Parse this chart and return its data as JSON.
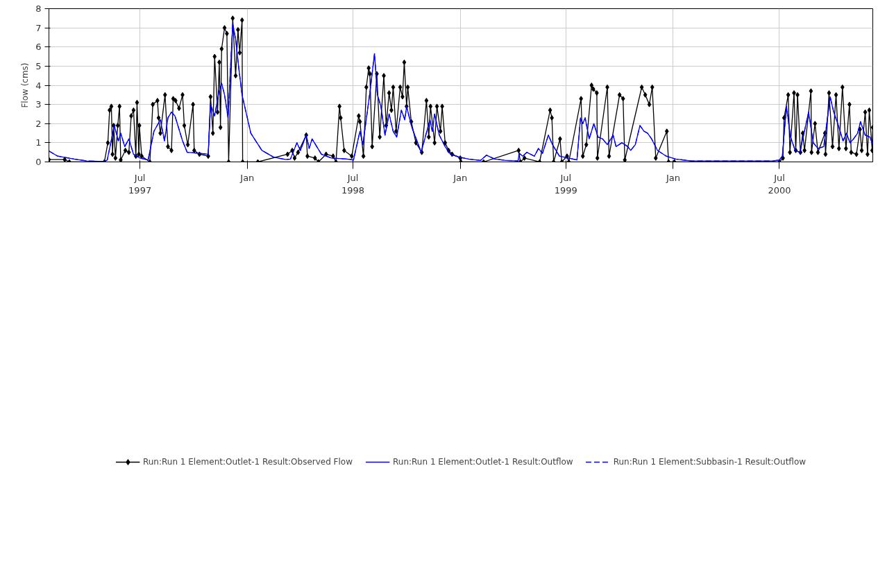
{
  "chart_data": {
    "type": "line",
    "ylabel": "Flow (cms)",
    "xlim": [
      "1997-01-26",
      "2000-12-08"
    ],
    "xticks": [
      {
        "value": "1997-07-01",
        "label": "Jul\n1997"
      },
      {
        "value": "1998-01-01",
        "label": "Jan"
      },
      {
        "value": "1998-07-01",
        "label": "Jul\n1998"
      },
      {
        "value": "1999-01-01",
        "label": "Jan"
      },
      {
        "value": "1999-07-01",
        "label": "Jul\n1999"
      },
      {
        "value": "2000-01-01",
        "label": "Jan"
      },
      {
        "value": "2000-07-01",
        "label": "Jul\n2000"
      }
    ],
    "ylim": [
      0,
      8
    ],
    "yticks": [
      0,
      1,
      2,
      3,
      4,
      5,
      6,
      7,
      8
    ],
    "grid": true,
    "legend": "bottom",
    "series": [
      {
        "name": "Run:Run 1 Element:Outlet-1 Result:Observed Flow",
        "color": "#000000",
        "marker": "diamond",
        "line_style": "solid",
        "x": [
          "1997-01-26",
          "1997-02-22",
          "1997-03-02",
          "1997-05-01",
          "1997-05-07",
          "1997-05-10",
          "1997-05-13",
          "1997-05-15",
          "1997-05-17",
          "1997-05-20",
          "1997-05-24",
          "1997-05-27",
          "1997-05-29",
          "1997-06-06",
          "1997-06-12",
          "1997-06-16",
          "1997-06-20",
          "1997-06-24",
          "1997-06-26",
          "1997-06-29",
          "1997-06-30",
          "1997-07-04",
          "1997-07-18",
          "1997-07-23",
          "1997-07-31",
          "1997-08-02",
          "1997-08-05",
          "1997-08-13",
          "1997-08-18",
          "1997-08-24",
          "1997-08-27",
          "1997-08-31",
          "1997-09-06",
          "1997-09-12",
          "1997-09-15",
          "1997-09-21",
          "1997-09-30",
          "1997-10-02",
          "1997-10-11",
          "1997-10-26",
          "1997-10-30",
          "1997-11-03",
          "1997-11-06",
          "1997-11-11",
          "1997-11-14",
          "1997-11-16",
          "1997-11-18",
          "1997-11-23",
          "1997-11-27",
          "1997-11-30",
          "1997-12-07",
          "1997-12-12",
          "1997-12-16",
          "1997-12-19",
          "1997-12-23",
          "1997-12-24",
          "1998-01-19",
          "1998-03-11",
          "1998-03-19",
          "1998-03-23",
          "1998-03-29",
          "1998-04-12",
          "1998-04-14",
          "1998-04-27",
          "1998-05-03",
          "1998-05-16",
          "1998-05-28",
          "1998-06-02",
          "1998-06-08",
          "1998-06-10",
          "1998-06-16",
          "1998-06-29",
          "1998-07-11",
          "1998-07-13",
          "1998-07-19",
          "1998-07-24",
          "1998-07-28",
          "1998-07-30",
          "1998-08-03",
          "1998-08-11",
          "1998-08-16",
          "1998-08-23",
          "1998-08-27",
          "1998-09-01",
          "1998-09-05",
          "1998-09-08",
          "1998-09-13",
          "1998-09-20",
          "1998-09-24",
          "1998-09-27",
          "1998-10-01",
          "1998-10-03",
          "1998-10-09",
          "1998-10-17",
          "1998-10-27",
          "1998-11-04",
          "1998-11-08",
          "1998-11-11",
          "1998-11-18",
          "1998-11-22",
          "1998-11-28",
          "1998-12-01",
          "1998-12-06",
          "1998-12-12",
          "1998-12-18",
          "1999-01-01",
          "1999-01-02",
          "1999-02-10",
          "1999-04-11",
          "1999-04-14",
          "1999-04-21",
          "1999-05-17",
          "1999-06-04",
          "1999-06-07",
          "1999-06-10",
          "1999-06-21",
          "1999-06-24",
          "1999-07-03",
          "1999-07-06",
          "1999-07-27",
          "1999-07-30",
          "1999-08-05",
          "1999-08-14",
          "1999-08-17",
          "1999-08-23",
          "1999-08-24",
          "1999-09-10",
          "1999-09-13",
          "1999-10-01",
          "1999-10-07",
          "1999-10-10",
          "1999-11-08",
          "1999-11-14",
          "1999-11-21",
          "1999-11-26",
          "1999-12-02",
          "1999-12-21",
          "1999-12-24",
          "2000-01-03",
          "2000-07-01",
          "2000-07-07",
          "2000-07-09",
          "2000-07-16",
          "2000-07-19",
          "2000-07-26",
          "2000-07-29",
          "2000-08-01",
          "2000-08-06",
          "2000-08-10",
          "2000-08-13",
          "2000-08-24",
          "2000-08-25",
          "2000-08-31",
          "2000-09-05",
          "2000-09-17",
          "2000-09-18",
          "2000-09-24",
          "2000-09-30",
          "2000-10-06",
          "2000-10-11",
          "2000-10-17",
          "2000-10-23",
          "2000-10-29",
          "2000-11-01",
          "2000-11-10",
          "2000-11-16",
          "2000-11-19",
          "2000-11-25",
          "2000-11-29",
          "2000-12-02",
          "2000-12-07",
          "2000-12-08"
        ],
        "values": [
          0.12,
          0.12,
          0,
          0,
          1.0,
          2.7,
          2.9,
          0.4,
          1.9,
          0.2,
          1.9,
          2.9,
          0.1,
          0.6,
          0.5,
          2.4,
          2.7,
          0.3,
          3.1,
          0.4,
          1.9,
          0.3,
          0,
          3.0,
          3.2,
          2.3,
          1.5,
          3.5,
          0.8,
          0.6,
          3.3,
          3.2,
          2.8,
          3.5,
          1.9,
          0.9,
          3.0,
          0.6,
          0.4,
          0.3,
          3.4,
          1.5,
          5.5,
          2.6,
          5.2,
          1.8,
          5.9,
          7.0,
          6.7,
          0,
          7.5,
          4.5,
          6.9,
          5.7,
          7.4,
          0,
          0,
          0.4,
          0.6,
          0.2,
          0.5,
          1.4,
          0.3,
          0.2,
          0,
          0.4,
          0.3,
          0,
          2.9,
          2.3,
          0.6,
          0.3,
          2.4,
          2.1,
          0.3,
          3.9,
          4.9,
          4.6,
          0.8,
          4.6,
          1.3,
          4.5,
          1.9,
          3.6,
          2.7,
          3.9,
          1.6,
          3.9,
          3.4,
          5.2,
          2.9,
          3.9,
          2.1,
          1.0,
          0.5,
          3.2,
          1.3,
          2.9,
          1.0,
          2.9,
          1.6,
          2.9,
          1.0,
          0.6,
          0.4,
          0.2,
          0,
          0,
          0.6,
          0,
          0.2,
          0,
          2.7,
          2.3,
          0,
          1.2,
          0,
          0.3,
          0,
          3.3,
          0.3,
          0.9,
          4.0,
          3.8,
          3.6,
          0.2,
          3.9,
          0.3,
          3.5,
          3.3,
          0.1,
          3.9,
          3.5,
          3.0,
          3.9,
          0.2,
          1.6,
          0,
          0,
          0,
          0.2,
          2.3,
          3.5,
          0.5,
          3.6,
          0.6,
          3.5,
          0.5,
          1.5,
          0.6,
          3.7,
          0.5,
          2.0,
          0.5,
          1.5,
          0.4,
          3.6,
          0.8,
          3.5,
          0.7,
          3.9,
          0.7,
          3.0,
          0.5,
          0.4,
          1.7,
          0.6,
          2.6,
          0.4,
          2.7,
          0.6,
          1.8
        ]
      },
      {
        "name": "Run:Run 1 Element:Outlet-1 Result:Outflow",
        "color": "#0000ff",
        "marker": "none",
        "line_style": "solid",
        "x": [
          "1997-01-26",
          "1997-02-10",
          "1997-03-10",
          "1997-04-01",
          "1997-05-01",
          "1997-05-06",
          "1997-05-18",
          "1997-05-25",
          "1997-05-29",
          "1997-06-05",
          "1997-06-12",
          "1997-06-20",
          "1997-07-01",
          "1997-07-15",
          "1997-07-25",
          "1997-08-05",
          "1997-08-12",
          "1997-08-18",
          "1997-08-24",
          "1997-08-30",
          "1997-09-05",
          "1997-09-12",
          "1997-09-20",
          "1997-10-10",
          "1997-10-26",
          "1997-10-30",
          "1997-11-06",
          "1997-11-13",
          "1997-11-18",
          "1997-11-23",
          "1997-11-29",
          "1997-12-07",
          "1997-12-12",
          "1997-12-17",
          "1997-12-23",
          "1998-01-07",
          "1998-01-26",
          "1998-02-15",
          "1998-03-08",
          "1998-03-16",
          "1998-03-27",
          "1998-04-02",
          "1998-04-12",
          "1998-04-17",
          "1998-04-22",
          "1998-05-08",
          "1998-05-25",
          "1998-06-20",
          "1998-07-02",
          "1998-07-13",
          "1998-07-18",
          "1998-07-30",
          "1998-08-07",
          "1998-08-12",
          "1998-08-18",
          "1998-08-25",
          "1998-09-01",
          "1998-09-08",
          "1998-09-14",
          "1998-09-22",
          "1998-09-28",
          "1998-10-01",
          "1998-10-10",
          "1998-10-20",
          "1998-10-26",
          "1998-11-02",
          "1998-11-10",
          "1998-11-14",
          "1998-11-18",
          "1998-11-26",
          "1998-12-06",
          "1998-12-15",
          "1998-12-31",
          "1999-01-15",
          "1999-02-05",
          "1999-02-15",
          "1999-03-01",
          "1999-03-20",
          "1999-04-10",
          "1999-04-12",
          "1999-04-18",
          "1999-04-25",
          "1999-05-08",
          "1999-05-15",
          "1999-05-22",
          "1999-06-01",
          "1999-06-08",
          "1999-06-20",
          "1999-07-05",
          "1999-07-20",
          "1999-07-26",
          "1999-07-30",
          "1999-08-03",
          "1999-08-10",
          "1999-08-18",
          "1999-08-25",
          "1999-09-02",
          "1999-09-10",
          "1999-09-20",
          "1999-09-25",
          "1999-10-05",
          "1999-10-15",
          "1999-10-20",
          "1999-10-28",
          "1999-11-05",
          "1999-11-12",
          "1999-11-18",
          "1999-11-25",
          "1999-12-05",
          "1999-12-20",
          "2000-01-05",
          "2000-02-01",
          "2000-06-20",
          "2000-07-01",
          "2000-07-06",
          "2000-07-13",
          "2000-07-20",
          "2000-07-28",
          "2000-08-05",
          "2000-08-20",
          "2000-08-28",
          "2000-09-05",
          "2000-09-15",
          "2000-09-26",
          "2000-10-02",
          "2000-10-10",
          "2000-10-18",
          "2000-10-24",
          "2000-10-30",
          "2000-11-05",
          "2000-11-12",
          "2000-11-17",
          "2000-11-25",
          "2000-12-03",
          "2000-12-08"
        ],
        "values": [
          0.57,
          0.3,
          0.15,
          0.05,
          0.02,
          0.1,
          1.9,
          1.1,
          1.5,
          0.8,
          1.2,
          0.4,
          0.2,
          0.1,
          1.6,
          2.2,
          1.1,
          2.3,
          2.6,
          2.4,
          1.8,
          1.1,
          0.5,
          0.45,
          0.4,
          3.0,
          2.4,
          3.6,
          4.1,
          3.5,
          2.3,
          7.2,
          6.4,
          5.0,
          3.5,
          1.5,
          0.6,
          0.25,
          0.12,
          0.15,
          1.0,
          0.6,
          1.4,
          0.7,
          1.2,
          0.4,
          0.2,
          0.15,
          0.1,
          1.6,
          0.9,
          3.6,
          5.65,
          3.5,
          2.9,
          1.4,
          2.5,
          1.6,
          1.3,
          2.7,
          2.2,
          2.9,
          1.8,
          1.0,
          0.5,
          1.3,
          2.2,
          1.6,
          2.5,
          1.4,
          0.8,
          0.4,
          0.25,
          0.15,
          0.08,
          0.35,
          0.15,
          0.08,
          0.05,
          0.45,
          0.3,
          0.5,
          0.3,
          0.7,
          0.45,
          1.4,
          0.9,
          0.3,
          0.2,
          0.1,
          2.3,
          2.0,
          2.3,
          1.2,
          2.0,
          1.3,
          1.2,
          0.9,
          1.4,
          0.8,
          1.0,
          0.8,
          0.6,
          0.9,
          1.9,
          1.6,
          1.5,
          1.2,
          0.6,
          0.3,
          0.15,
          0.05,
          0.05,
          0.1,
          0.3,
          2.9,
          1.3,
          0.6,
          0.5,
          2.6,
          1.0,
          0.7,
          0.8,
          3.4,
          2.6,
          1.9,
          1.1,
          1.5,
          1.0,
          1.2,
          1.5,
          2.1,
          1.4,
          1.3,
          0.9
        ]
      },
      {
        "name": "Run:Run 1 Element:Subbasin-1 Result:Outflow",
        "color": "#0000ff",
        "marker": "none",
        "line_style": "dashed",
        "x": [
          "1997-01-26",
          "1997-02-10",
          "1997-03-10",
          "1997-04-01",
          "1997-05-01",
          "1997-05-06",
          "1997-05-18",
          "1997-05-25",
          "1997-05-29",
          "1997-06-05",
          "1997-06-12",
          "1997-06-20",
          "1997-07-01",
          "1997-07-15",
          "1997-07-25",
          "1997-08-05",
          "1997-08-12",
          "1997-08-18",
          "1997-08-24",
          "1997-08-30",
          "1997-09-05",
          "1997-09-12",
          "1997-09-20",
          "1997-10-10",
          "1997-10-26",
          "1997-10-30",
          "1997-11-06",
          "1997-11-13",
          "1997-11-18",
          "1997-11-23",
          "1997-11-29",
          "1997-12-07",
          "1997-12-12",
          "1997-12-17",
          "1997-12-23",
          "1998-01-07",
          "1998-01-26",
          "1998-02-15",
          "1998-03-08",
          "1998-03-16",
          "1998-03-27",
          "1998-04-02",
          "1998-04-12",
          "1998-04-17",
          "1998-04-22",
          "1998-05-08",
          "1998-05-25",
          "1998-06-20",
          "1998-07-02",
          "1998-07-13",
          "1998-07-18",
          "1998-07-30",
          "1998-08-07",
          "1998-08-12",
          "1998-08-18",
          "1998-08-25",
          "1998-09-01",
          "1998-09-08",
          "1998-09-14",
          "1998-09-22",
          "1998-09-28",
          "1998-10-01",
          "1998-10-10",
          "1998-10-20",
          "1998-10-26",
          "1998-11-02",
          "1998-11-10",
          "1998-11-14",
          "1998-11-18",
          "1998-11-26",
          "1998-12-06",
          "1998-12-15",
          "1998-12-31",
          "1999-01-15",
          "1999-02-05",
          "1999-02-15",
          "1999-03-01",
          "1999-03-20",
          "1999-04-10",
          "1999-04-12",
          "1999-04-18",
          "1999-04-25",
          "1999-05-08",
          "1999-05-15",
          "1999-05-22",
          "1999-06-01",
          "1999-06-08",
          "1999-06-20",
          "1999-07-05",
          "1999-07-20",
          "1999-07-26",
          "1999-07-30",
          "1999-08-03",
          "1999-08-10",
          "1999-08-18",
          "1999-08-25",
          "1999-09-02",
          "1999-09-10",
          "1999-09-20",
          "1999-09-25",
          "1999-10-05",
          "1999-10-15",
          "1999-10-20",
          "1999-10-28",
          "1999-11-05",
          "1999-11-12",
          "1999-11-18",
          "1999-11-25",
          "1999-12-05",
          "1999-12-20",
          "2000-01-05",
          "2000-02-01",
          "2000-06-20",
          "2000-07-01",
          "2000-07-06",
          "2000-07-13",
          "2000-07-20",
          "2000-07-28",
          "2000-08-05",
          "2000-08-20",
          "2000-08-28",
          "2000-09-05",
          "2000-09-15",
          "2000-09-26",
          "2000-10-02",
          "2000-10-10",
          "2000-10-18",
          "2000-10-24",
          "2000-10-30",
          "2000-11-05",
          "2000-11-12",
          "2000-11-17",
          "2000-11-25",
          "2000-12-03",
          "2000-12-08"
        ],
        "values": [
          0.57,
          0.3,
          0.15,
          0.05,
          0.02,
          0.1,
          1.9,
          1.1,
          1.5,
          0.8,
          1.2,
          0.4,
          0.2,
          0.1,
          1.6,
          2.2,
          1.1,
          2.3,
          2.6,
          2.4,
          1.8,
          1.1,
          0.5,
          0.45,
          0.4,
          3.0,
          2.4,
          3.6,
          4.1,
          3.5,
          2.3,
          7.2,
          6.4,
          5.0,
          3.5,
          1.5,
          0.6,
          0.25,
          0.12,
          0.15,
          1.0,
          0.6,
          1.4,
          0.7,
          1.2,
          0.4,
          0.2,
          0.15,
          0.1,
          1.6,
          0.9,
          3.6,
          5.65,
          3.5,
          2.9,
          1.4,
          2.5,
          1.6,
          1.3,
          2.7,
          2.2,
          2.9,
          1.8,
          1.0,
          0.5,
          1.3,
          2.2,
          1.6,
          2.5,
          1.4,
          0.8,
          0.4,
          0.25,
          0.15,
          0.08,
          0.35,
          0.15,
          0.08,
          0.05,
          0.45,
          0.3,
          0.5,
          0.3,
          0.7,
          0.45,
          1.4,
          0.9,
          0.3,
          0.2,
          0.1,
          2.3,
          2.0,
          2.3,
          1.2,
          2.0,
          1.3,
          1.2,
          0.9,
          1.4,
          0.8,
          1.0,
          0.8,
          0.6,
          0.9,
          1.9,
          1.6,
          1.5,
          1.2,
          0.6,
          0.3,
          0.15,
          0.05,
          0.05,
          0.1,
          0.3,
          2.9,
          1.3,
          0.6,
          0.5,
          2.6,
          1.0,
          0.7,
          0.8,
          3.4,
          2.6,
          1.9,
          1.1,
          1.5,
          1.0,
          1.2,
          1.5,
          2.1,
          1.4,
          1.3,
          0.9
        ]
      }
    ]
  }
}
